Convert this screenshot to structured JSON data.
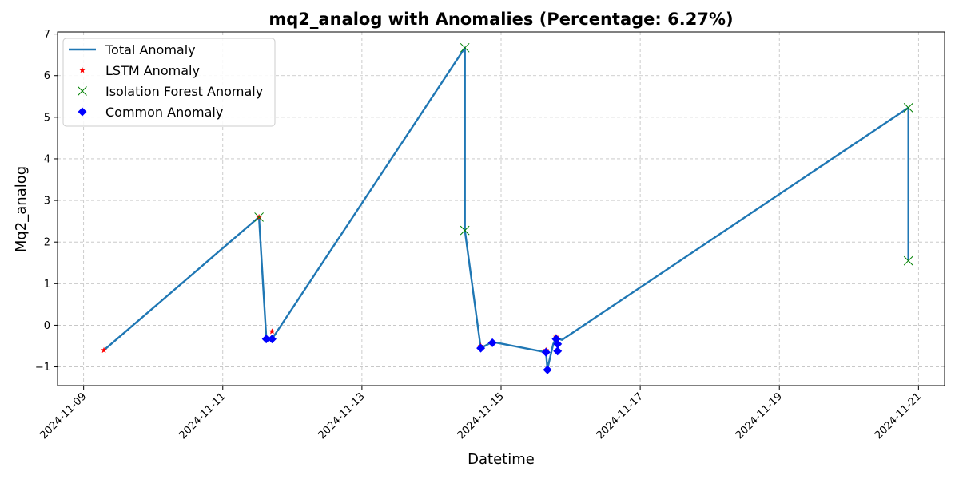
{
  "chart_data": {
    "type": "line",
    "title": "mq2_analog with Anomalies (Percentage: 6.27%)",
    "xlabel": "Datetime",
    "ylabel": "Mq2_analog",
    "x_type": "date",
    "xlim": [
      "2024-11-08T15:00",
      "2024-11-21T09:00"
    ],
    "ylim": [
      -1.45,
      7.05
    ],
    "x_ticks": [
      "2024-11-09",
      "2024-11-11",
      "2024-11-13",
      "2024-11-15",
      "2024-11-17",
      "2024-11-19",
      "2024-11-21"
    ],
    "y_ticks": [
      -1,
      0,
      1,
      2,
      3,
      4,
      5,
      6,
      7
    ],
    "y_tick_labels": [
      "−1",
      "0",
      "1",
      "2",
      "3",
      "4",
      "5",
      "6",
      "7"
    ],
    "grid": true,
    "legend_position": "top-left",
    "colors": {
      "line": "#1f77b4",
      "lstm": "#ff0000",
      "isolation_forest": "#008000",
      "common": "#0000ff",
      "grid": "#b0b0b0"
    },
    "series": [
      {
        "name": "Total Anomaly",
        "kind": "line",
        "points": [
          {
            "x": "2024-11-09T07:00",
            "y": -0.6
          },
          {
            "x": "2024-11-11T12:30",
            "y": 2.6
          },
          {
            "x": "2024-11-11T15:00",
            "y": -0.3
          },
          {
            "x": "2024-11-11T17:00",
            "y": -0.33
          },
          {
            "x": "2024-11-14T11:30",
            "y": 6.67
          },
          {
            "x": "2024-11-14T11:30",
            "y": 2.28
          },
          {
            "x": "2024-11-14T17:00",
            "y": -0.55
          },
          {
            "x": "2024-11-14T21:00",
            "y": -0.4
          },
          {
            "x": "2024-11-15T15:30",
            "y": -0.65
          },
          {
            "x": "2024-11-15T16:00",
            "y": -1.05
          },
          {
            "x": "2024-11-15T18:00",
            "y": -0.45
          },
          {
            "x": "2024-11-15T19:00",
            "y": -0.3
          },
          {
            "x": "2024-11-15T21:00",
            "y": -0.35
          },
          {
            "x": "2024-11-20T20:30",
            "y": 5.23
          },
          {
            "x": "2024-11-20T20:30",
            "y": 1.55
          }
        ]
      },
      {
        "name": "LSTM Anomaly",
        "kind": "marker",
        "marker": "star",
        "points": [
          {
            "x": "2024-11-09T07:00",
            "y": -0.6
          },
          {
            "x": "2024-11-11T12:30",
            "y": 2.6
          },
          {
            "x": "2024-11-11T17:00",
            "y": -0.15
          },
          {
            "x": "2024-11-14T17:00",
            "y": -0.5
          },
          {
            "x": "2024-11-15T15:30",
            "y": -0.6
          },
          {
            "x": "2024-11-15T19:00",
            "y": -0.28
          }
        ]
      },
      {
        "name": "Isolation Forest Anomaly",
        "kind": "marker",
        "marker": "x",
        "points": [
          {
            "x": "2024-11-11T12:30",
            "y": 2.6
          },
          {
            "x": "2024-11-14T11:30",
            "y": 6.67
          },
          {
            "x": "2024-11-14T11:30",
            "y": 2.28
          },
          {
            "x": "2024-11-20T20:30",
            "y": 5.23
          },
          {
            "x": "2024-11-20T20:30",
            "y": 1.55
          }
        ]
      },
      {
        "name": "Common Anomaly",
        "kind": "marker",
        "marker": "diamond",
        "points": [
          {
            "x": "2024-11-11T15:00",
            "y": -0.33
          },
          {
            "x": "2024-11-11T17:00",
            "y": -0.33
          },
          {
            "x": "2024-11-14T17:00",
            "y": -0.55
          },
          {
            "x": "2024-11-14T21:00",
            "y": -0.42
          },
          {
            "x": "2024-11-15T15:30",
            "y": -0.65
          },
          {
            "x": "2024-11-15T16:00",
            "y": -1.07
          },
          {
            "x": "2024-11-15T19:00",
            "y": -0.33
          },
          {
            "x": "2024-11-15T19:30",
            "y": -0.45
          },
          {
            "x": "2024-11-15T19:30",
            "y": -0.62
          }
        ]
      }
    ]
  }
}
